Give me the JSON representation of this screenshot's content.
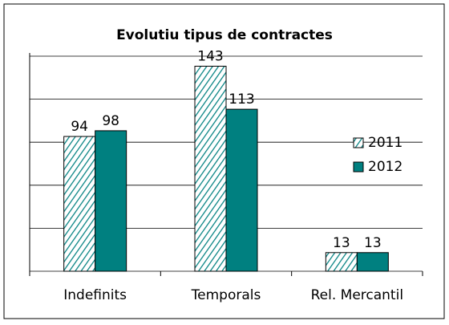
{
  "chart_data": {
    "type": "bar",
    "title": "Evolutiu tipus de contractes",
    "categories": [
      "Indefinits",
      "Temporals",
      "Rel. Mercantil"
    ],
    "series": [
      {
        "name": "2011",
        "color": "#008080",
        "values": [
          94,
          143,
          13
        ]
      },
      {
        "name": "2012",
        "color": "#008080",
        "values": [
          98,
          113,
          13
        ]
      }
    ],
    "ylim": [
      0,
      150
    ],
    "yticks": [
      0,
      30,
      60,
      90,
      120,
      150
    ],
    "grid": true,
    "legend": "right"
  }
}
